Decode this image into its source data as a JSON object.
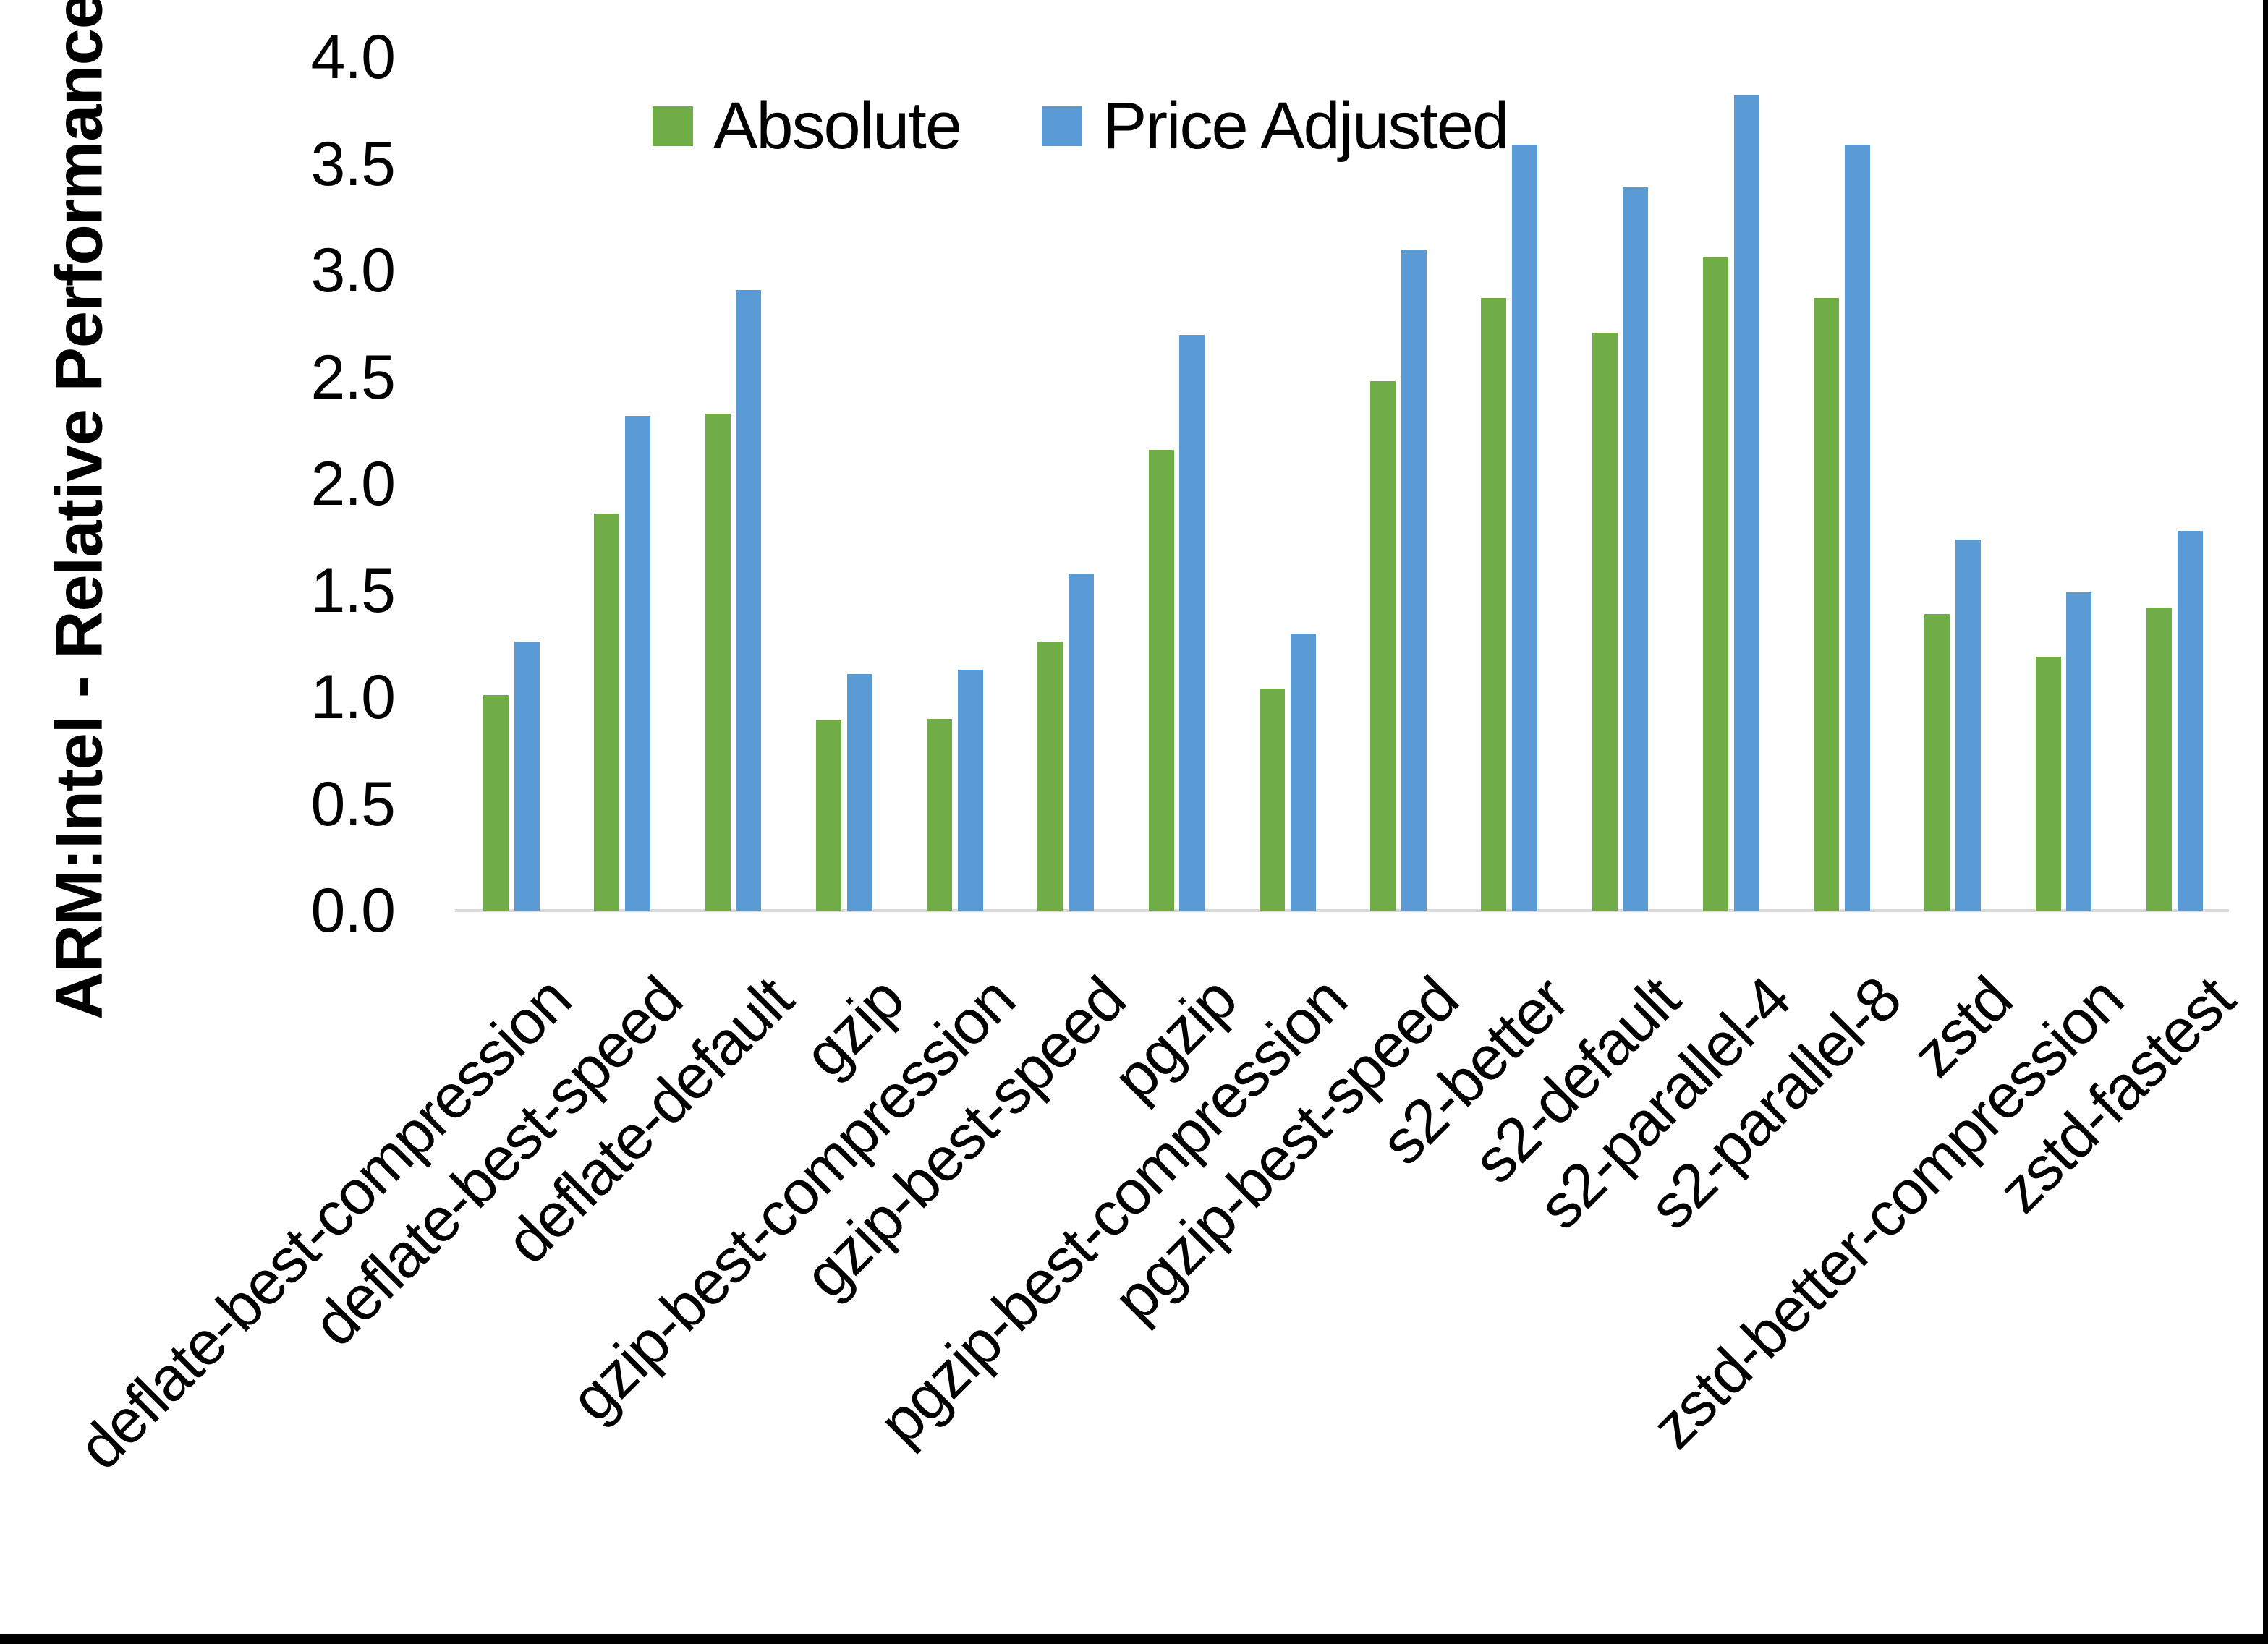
{
  "chart_data": {
    "type": "bar",
    "title": "",
    "ylabel": "ARM:Intel - Relative Performance",
    "xlabel": "",
    "ylim": [
      0.0,
      4.0
    ],
    "ytick_step": 0.5,
    "ytick_labels": [
      "0.0",
      "0.5",
      "1.0",
      "1.5",
      "2.0",
      "2.5",
      "3.0",
      "3.5",
      "4.0"
    ],
    "grid": false,
    "legend_position": "top-center",
    "axis_line_color": "#d9d9d9",
    "categories": [
      "deflate-best-compression",
      "deflate-best-speed",
      "deflate-default",
      "gzip",
      "gzip-best-compression",
      "gzip-best-speed",
      "pgzip",
      "pgzip-best-compression",
      "pgzip-best-speed",
      "s2-better",
      "s2-default",
      "s2-parallel-4",
      "s2-parallel-8",
      "zstd",
      "zstd-better-compression",
      "zstd-fastest"
    ],
    "series": [
      {
        "name": "Absolute",
        "color": "#70AD47",
        "values": [
          1.01,
          1.86,
          2.33,
          0.89,
          0.9,
          1.26,
          2.16,
          1.04,
          2.48,
          2.87,
          2.71,
          3.06,
          2.87,
          1.39,
          1.19,
          1.42
        ]
      },
      {
        "name": "Price Adjusted",
        "color": "#5B9BD5",
        "values": [
          1.26,
          2.32,
          2.91,
          1.11,
          1.13,
          1.58,
          2.7,
          1.3,
          3.1,
          3.59,
          3.39,
          3.82,
          3.59,
          1.74,
          1.49,
          1.78
        ]
      }
    ]
  }
}
